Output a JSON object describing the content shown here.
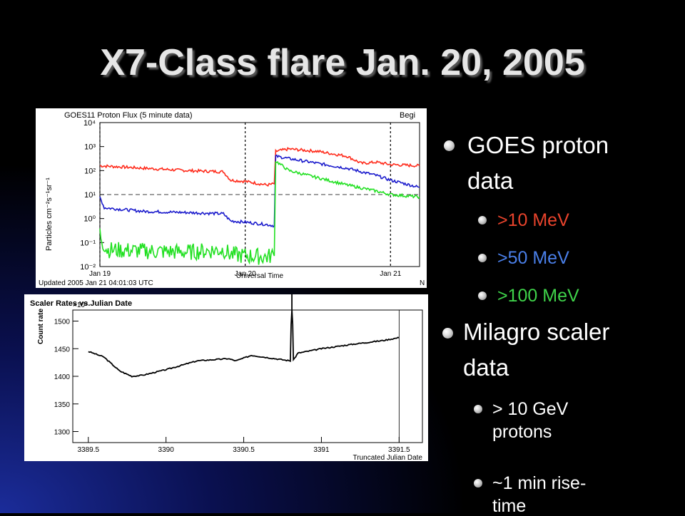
{
  "slide": {
    "title": "X7-Class flare Jan. 20, 2005"
  },
  "bullets": {
    "goes": {
      "label_line1": "GOES proton",
      "label_line2": "data",
      "items": [
        {
          "text": ">10 MeV",
          "color": "#e8432c"
        },
        {
          "text": ">50 MeV",
          "color": "#4a7fe8"
        },
        {
          "text": ">100 MeV",
          "color": "#3fd24a"
        }
      ]
    },
    "milagro": {
      "label_line1": "Milagro scaler",
      "label_line2": "data",
      "items": [
        {
          "line1": "> 10 GeV",
          "line2": "protons"
        },
        {
          "line1": "~1 min rise-",
          "line2": "time"
        }
      ]
    }
  },
  "chart_data": [
    {
      "type": "line",
      "title": "GOES11 Proton Flux (5 minute data)",
      "title_right": "Begi",
      "ylabel": "Particles cm⁻²s⁻¹sr⁻¹",
      "xlabel": "Universal Time",
      "footer": "Updated 2005 Jan 21 04:01:03 UTC",
      "footer_right": "N",
      "yscale": "log",
      "ylim_exp": [
        -2,
        4
      ],
      "ytick_labels": [
        "10⁴",
        "10³",
        "10²",
        "10¹",
        "10⁰",
        "10⁻¹",
        "10⁻²"
      ],
      "xlim_days": [
        0,
        2.2
      ],
      "xtick_labels": [
        {
          "day": 0.0,
          "label": "Jan 19"
        },
        {
          "day": 1.0,
          "label": "Jan 20"
        },
        {
          "day": 2.0,
          "label": "Jan 21"
        }
      ],
      "threshold_exp": 1,
      "series": [
        {
          "name": ">10 MeV",
          "color": "#ff2a1a",
          "points": [
            [
              0.0,
              2.2
            ],
            [
              0.3,
              2.1
            ],
            [
              0.6,
              2.0
            ],
            [
              0.85,
              1.95
            ],
            [
              0.9,
              1.6
            ],
            [
              1.0,
              1.55
            ],
            [
              1.15,
              1.4
            ],
            [
              1.2,
              1.45
            ],
            [
              1.21,
              2.8
            ],
            [
              1.3,
              2.9
            ],
            [
              1.5,
              2.8
            ],
            [
              1.7,
              2.6
            ],
            [
              1.8,
              2.3
            ],
            [
              1.9,
              2.35
            ],
            [
              2.0,
              2.25
            ],
            [
              2.2,
              2.2
            ]
          ]
        },
        {
          "name": ">50 MeV",
          "color": "#1a1acc",
          "points": [
            [
              0.0,
              0.9
            ],
            [
              0.03,
              0.45
            ],
            [
              0.3,
              0.3
            ],
            [
              0.6,
              0.25
            ],
            [
              0.85,
              0.2
            ],
            [
              0.9,
              -0.1
            ],
            [
              1.0,
              -0.15
            ],
            [
              1.15,
              -0.25
            ],
            [
              1.2,
              -0.3
            ],
            [
              1.21,
              2.6
            ],
            [
              1.3,
              2.5
            ],
            [
              1.5,
              2.3
            ],
            [
              1.7,
              2.1
            ],
            [
              1.9,
              1.8
            ],
            [
              2.0,
              1.6
            ],
            [
              2.2,
              1.3
            ]
          ]
        },
        {
          "name": ">100 MeV",
          "color": "#22e022",
          "points": [
            [
              0.0,
              -0.6
            ],
            [
              0.02,
              -1.0
            ],
            [
              0.05,
              -1.3
            ],
            [
              0.3,
              -1.35
            ],
            [
              0.6,
              -1.4
            ],
            [
              0.85,
              -1.3
            ],
            [
              0.9,
              -1.5
            ],
            [
              1.0,
              -1.55
            ],
            [
              1.15,
              -1.6
            ],
            [
              1.2,
              -1.5
            ],
            [
              1.21,
              2.4
            ],
            [
              1.3,
              2.0
            ],
            [
              1.5,
              1.7
            ],
            [
              1.7,
              1.4
            ],
            [
              1.9,
              1.15
            ],
            [
              2.0,
              1.0
            ],
            [
              2.2,
              0.9
            ]
          ]
        }
      ]
    },
    {
      "type": "line",
      "title": "Scaler Rates vs.Julian Date",
      "ylabel": "Count rate",
      "yunit": "×10⁴",
      "xlabel": "Truncated Julian Date",
      "ylim": [
        1280,
        1520
      ],
      "xlim": [
        3389.4,
        3391.65
      ],
      "yticks": [
        1300,
        1350,
        1400,
        1450,
        1500
      ],
      "xticks": [
        3389.5,
        3390,
        3390.5,
        3391,
        3391.5
      ],
      "series": [
        {
          "name": "",
          "color": "#000000",
          "points": [
            [
              3389.5,
              1445
            ],
            [
              3389.6,
              1435
            ],
            [
              3389.7,
              1410
            ],
            [
              3389.78,
              1400
            ],
            [
              3389.85,
              1402
            ],
            [
              3390.0,
              1412
            ],
            [
              3390.2,
              1428
            ],
            [
              3390.4,
              1432
            ],
            [
              3390.45,
              1428
            ],
            [
              3390.55,
              1438
            ],
            [
              3390.7,
              1432
            ],
            [
              3390.8,
              1428
            ],
            [
              3390.81,
              1560
            ],
            [
              3390.82,
              1430
            ],
            [
              3390.85,
              1442
            ],
            [
              3391.0,
              1450
            ],
            [
              3391.2,
              1458
            ],
            [
              3391.4,
              1465
            ],
            [
              3391.5,
              1470
            ]
          ]
        }
      ]
    }
  ]
}
